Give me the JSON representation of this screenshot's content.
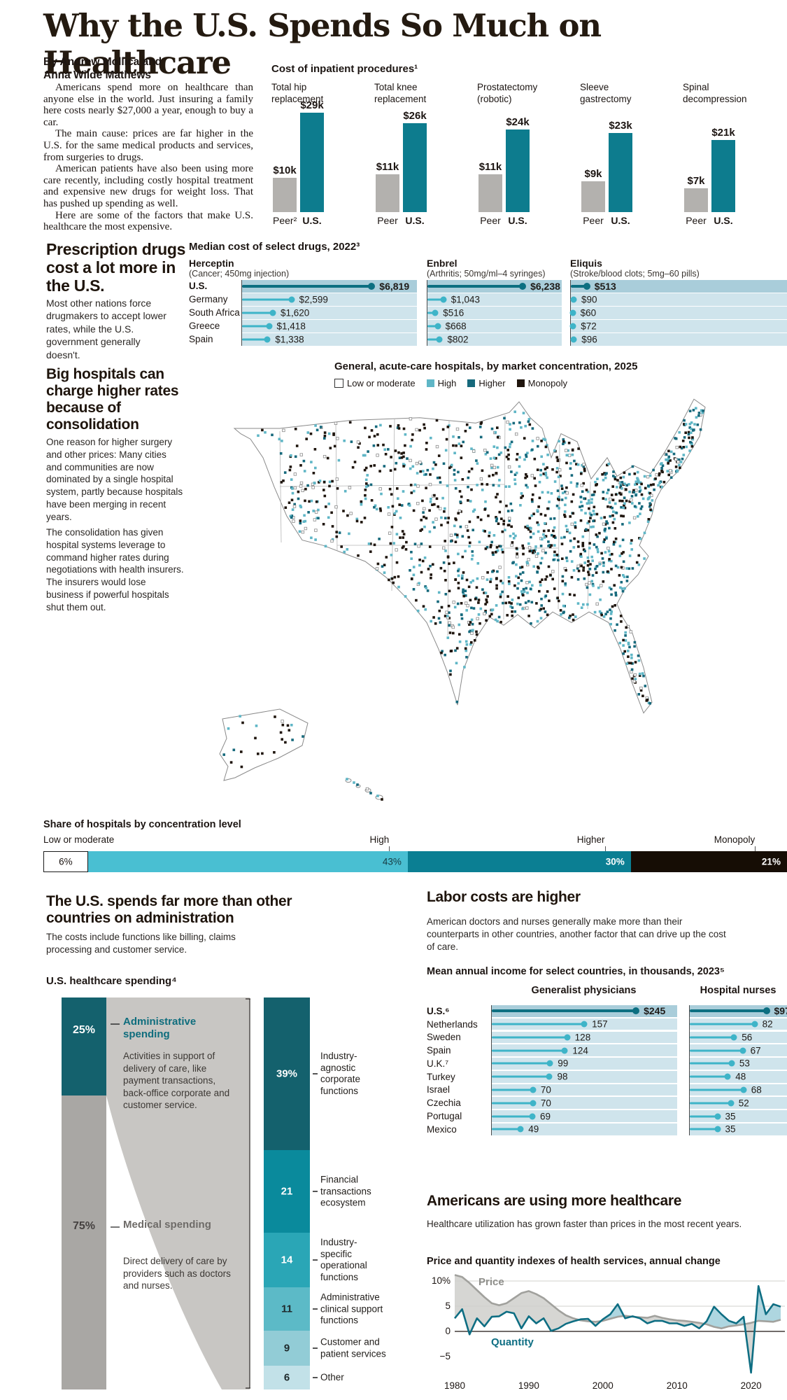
{
  "header": {
    "title": "Why the U.S. Spends So Much on Healthcare",
    "byline": [
      "By Andrew Mollica and",
      "Anna Wilde Mathews"
    ]
  },
  "intro_paragraphs": [
    "Americans spend more on healthcare than anyone else in the world. Just insuring a family here costs nearly $27,000 a year, enough to buy a car.",
    "The main cause: prices are far higher in the U.S. for the same medical products and services, from surgeries to drugs.",
    "American patients have also been using more care recently, including costly hospital treatment and expensive new drugs for weight loss. That has pushed up spending as well.",
    "Here are some of the factors that make U.S. healthcare the most expensive."
  ],
  "sections": {
    "drugs": {
      "heading": "Prescription drugs cost a lot more in the U.S.",
      "body": "Most other nations force drugmakers to accept lower rates, while the U.S. government generally doesn't."
    },
    "hospitals": {
      "heading": "Big hospitals can charge higher rates because of consolidation",
      "p1": "One reason for higher surgery and other prices: Many cities and communities are now dominated by a single hospital system, partly because hospitals have been merging in recent years.",
      "p2": "The consolidation has given hospital systems leverage to command higher rates during negotiations with health insurers. The insurers would lose business if powerful hospitals shut them out."
    },
    "admin": {
      "heading": "The U.S. spends far more than other countries on administration",
      "body": "The costs include functions like billing, claims processing and customer service."
    },
    "labor": {
      "heading": "Labor costs are higher",
      "body": "American doctors and nurses generally make more than their counterparts in other countries, another factor that can drive up the cost of care."
    },
    "utilization": {
      "heading": "Americans are using more healthcare",
      "body": "Healthcare utilization has grown faster than prices in the most recent years."
    }
  },
  "chart_data": [
    {
      "type": "bar",
      "title": "Cost of inpatient procedures¹",
      "us_axis_label": "U.S.",
      "groups": [
        {
          "name_lines": [
            "Total hip",
            "replacement"
          ],
          "peer": 10,
          "peer_label": "$10k",
          "us": 29,
          "us_label": "$29k",
          "peer_axis": "Peer²"
        },
        {
          "name_lines": [
            "Total knee",
            "replacement"
          ],
          "peer": 11,
          "peer_label": "$11k",
          "us": 26,
          "us_label": "$26k",
          "peer_axis": "Peer"
        },
        {
          "name_lines": [
            "Prostatectomy",
            "(robotic)"
          ],
          "peer": 11,
          "peer_label": "$11k",
          "us": 24,
          "us_label": "$24k",
          "peer_axis": "Peer"
        },
        {
          "name_lines": [
            "Sleeve",
            "gastrectomy"
          ],
          "peer": 9,
          "peer_label": "$9k",
          "us": 23,
          "us_label": "$23k",
          "peer_axis": "Peer"
        },
        {
          "name_lines": [
            "Spinal",
            "decompression"
          ],
          "peer": 7,
          "peer_label": "$7k",
          "us": 21,
          "us_label": "$21k",
          "peer_axis": "Peer"
        }
      ]
    },
    {
      "type": "lollipop",
      "title": "Median cost of select drugs, 2022³",
      "countries": [
        "U.S.",
        "Germany",
        "South Africa",
        "Greece",
        "Spain"
      ],
      "panels": [
        {
          "name": "Herceptin",
          "subtitle": "(Cancer; 450mg injection)",
          "scale_max": 9200,
          "values": [
            6819,
            2599,
            1620,
            1418,
            1338
          ],
          "labels": [
            "$6,819",
            "$2,599",
            "$1,620",
            "$1,418",
            "$1,338"
          ]
        },
        {
          "name": "Enbrel",
          "subtitle": "(Arthritis; 50mg/ml–4 syringes)",
          "scale_max": 8800,
          "values": [
            6238,
            1043,
            516,
            668,
            802
          ],
          "labels": [
            "$6,238",
            "$1,043",
            "$516",
            "$668",
            "$802"
          ]
        },
        {
          "name": "Eliquis",
          "subtitle": "(Stroke/blood clots; 5mg–60 pills)",
          "scale_max": 7000,
          "values": [
            513,
            90,
            60,
            72,
            96
          ],
          "labels": [
            "$513",
            "$90",
            "$60",
            "$72",
            "$96"
          ]
        }
      ]
    },
    {
      "type": "scatter-map",
      "title": "General, acute-care hospitals, by market concentration, 2025",
      "legend": [
        {
          "label": "Low or moderate",
          "color": "#ffffff"
        },
        {
          "label": "High",
          "color": "#5fb6c6"
        },
        {
          "label": "Higher",
          "color": "#16697c"
        },
        {
          "label": "Monopoly",
          "color": "#1f150d"
        }
      ]
    },
    {
      "type": "stacked-bar",
      "title": "Share of hospitals by concentration level",
      "segments": [
        {
          "label": "Low or moderate",
          "value": 6,
          "text": "6%",
          "color": "#ffffff"
        },
        {
          "label": "High",
          "value": 43,
          "text": "43%",
          "color": "#49bfd2"
        },
        {
          "label": "Higher",
          "value": 30,
          "text": "30%",
          "color": "#0b7f93"
        },
        {
          "label": "Monopoly",
          "value": 21,
          "text": "21%",
          "color": "#160d05"
        }
      ]
    },
    {
      "type": "flow-stacked",
      "title": "U.S. healthcare spending⁴",
      "left": [
        {
          "pct_label": "25%",
          "name": "Administrative spending",
          "desc": "Activities in support of delivery of care, like payment transactions, back-office corporate and customer service.",
          "value": 25
        },
        {
          "pct_label": "75%",
          "name": "Medical spending",
          "desc": "Direct delivery of care by providers such as doctors and nurses.",
          "value": 75
        }
      ],
      "breakdown": [
        {
          "label": "39%",
          "value": 39,
          "text": "Industry-agnostic corporate functions",
          "color": "#14616d",
          "dark_text": false
        },
        {
          "label": "21",
          "value": 21,
          "text": "Financial transactions ecosystem",
          "color": "#0a8a9c",
          "dark_text": false
        },
        {
          "label": "14",
          "value": 14,
          "text": "Industry-specific operational functions",
          "color": "#2aa6b6",
          "dark_text": false
        },
        {
          "label": "11",
          "value": 11,
          "text": "Administrative clinical support functions",
          "color": "#5cbac7",
          "dark_text": true
        },
        {
          "label": "9",
          "value": 9,
          "text": "Customer and patient services",
          "color": "#92ccd6",
          "dark_text": true
        },
        {
          "label": "6",
          "value": 6,
          "text": "Other",
          "color": "#c2e1e8",
          "dark_text": true
        }
      ]
    },
    {
      "type": "lollipop",
      "title": "Mean annual income for select countries, in thousands, 2023⁵",
      "col_headers": [
        "Generalist physicians",
        "Hospital nurses"
      ],
      "countries": [
        "U.S.⁶",
        "Netherlands",
        "Sweden",
        "Spain",
        "U.K.⁷",
        "Turkey",
        "Israel",
        "Czechia",
        "Portugal",
        "Mexico"
      ],
      "physicians": {
        "scale_max": 315,
        "values": [
          245,
          157,
          128,
          124,
          99,
          98,
          70,
          70,
          69,
          49
        ],
        "labels": [
          "$245",
          "157",
          "128",
          "124",
          "99",
          "98",
          "70",
          "70",
          "69",
          "49"
        ]
      },
      "nurses": {
        "scale_max": 124,
        "values": [
          97,
          82,
          56,
          67,
          53,
          48,
          68,
          52,
          35,
          35
        ],
        "labels": [
          "$97",
          "82",
          "56",
          "67",
          "53",
          "48",
          "68",
          "52",
          "35",
          "35"
        ]
      }
    },
    {
      "type": "line",
      "title": "Price and quantity indexes of health services, annual change",
      "x_start": 1980,
      "x_ticks": [
        "1980",
        "1990",
        "2000",
        "2010",
        "2020"
      ],
      "y_ticks": [
        "10%",
        "5",
        "0",
        "−5"
      ],
      "series": [
        {
          "name": "Price",
          "values": [
            11.2,
            10.8,
            9.6,
            8.2,
            6.8,
            5.6,
            5.2,
            5.6,
            6.6,
            7.6,
            8.0,
            7.4,
            6.6,
            5.4,
            4.2,
            3.2,
            2.6,
            2.2,
            2.0,
            1.9,
            2.1,
            2.5,
            2.9,
            3.1,
            2.9,
            2.8,
            2.7,
            3.1,
            2.7,
            2.4,
            2.2,
            2.1,
            1.9,
            1.7,
            1.4,
            0.9,
            0.6,
            1.0,
            1.2,
            1.4,
            1.7,
            2.1,
            2.0,
            1.9,
            2.3
          ]
        },
        {
          "name": "Quantity",
          "values": [
            2.6,
            4.4,
            -0.6,
            2.6,
            1.0,
            2.9,
            3.0,
            3.9,
            3.6,
            0.6,
            3.0,
            1.6,
            2.6,
            0.1,
            0.6,
            1.5,
            2.0,
            2.4,
            2.5,
            1.1,
            2.4,
            3.4,
            5.4,
            2.6,
            3.0,
            2.6,
            1.6,
            2.1,
            2.1,
            1.6,
            1.6,
            1.1,
            1.5,
            0.6,
            2.0,
            4.9,
            3.4,
            2.1,
            1.6,
            2.9,
            -8.2,
            9.0,
            3.4,
            5.4,
            4.9
          ]
        }
      ]
    }
  ],
  "colors": {
    "teal_dark": "#0d7c8e",
    "teal_light": "#49bfd2",
    "row_bg": "#cfe4ec",
    "row_bg_us": "#a9cdda",
    "peer_gray": "#b3b1ae",
    "monopoly_black": "#160d05",
    "price_gray": "#a1a19d",
    "quantity_teal": "#0e6e83",
    "fill_gray": "#d6d6d3",
    "fill_blue": "#aed6e0"
  }
}
